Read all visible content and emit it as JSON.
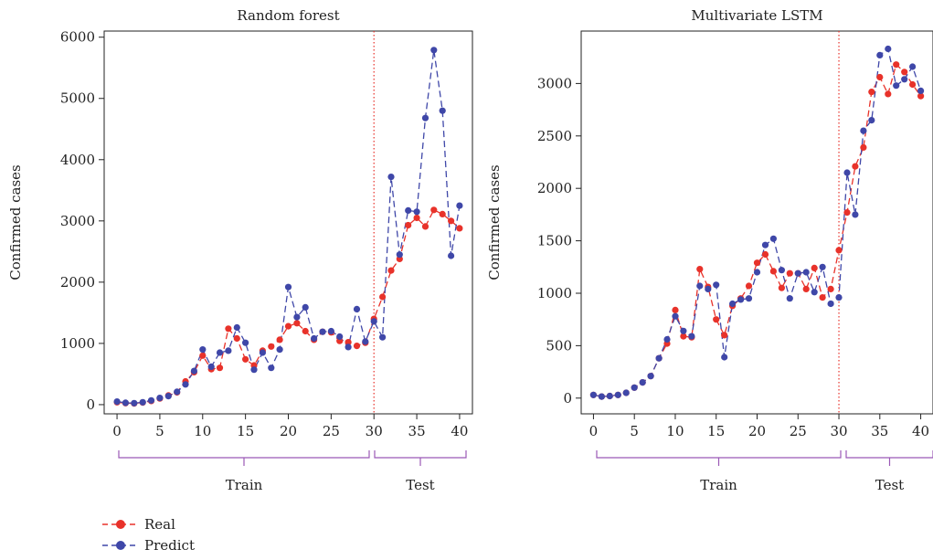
{
  "chart_data": [
    {
      "type": "line",
      "title": "Random forest",
      "xlabel": "",
      "ylabel": "Confirmed cases",
      "xlim": [
        -1.5,
        41.5
      ],
      "ylim": [
        -150,
        6100
      ],
      "xticks": [
        0,
        5,
        10,
        15,
        20,
        25,
        30,
        35,
        40
      ],
      "yticks": [
        0,
        1000,
        2000,
        3000,
        4000,
        5000,
        6000
      ],
      "divider_x": 30,
      "x": [
        0,
        1,
        2,
        3,
        4,
        5,
        6,
        7,
        8,
        9,
        10,
        11,
        12,
        13,
        14,
        15,
        16,
        17,
        18,
        19,
        20,
        21,
        22,
        23,
        24,
        25,
        26,
        27,
        28,
        29,
        30,
        31,
        32,
        33,
        34,
        35,
        36,
        37,
        38,
        39,
        40
      ],
      "series": [
        {
          "name": "Real",
          "color": "#e8322a",
          "values": [
            40,
            25,
            20,
            35,
            60,
            100,
            150,
            200,
            380,
            530,
            800,
            580,
            600,
            1240,
            1080,
            740,
            640,
            880,
            950,
            1060,
            1280,
            1330,
            1200,
            1060,
            1190,
            1180,
            1040,
            1020,
            960,
            1010,
            1400,
            1760,
            2190,
            2380,
            2930,
            3050,
            2910,
            3180,
            3110,
            3000,
            2880
          ]
        },
        {
          "name": "Predict",
          "color": "#3f47a8",
          "values": [
            50,
            30,
            25,
            40,
            70,
            110,
            140,
            210,
            330,
            550,
            900,
            620,
            850,
            880,
            1260,
            1010,
            570,
            850,
            600,
            900,
            1920,
            1430,
            1590,
            1080,
            1190,
            1200,
            1110,
            940,
            1560,
            1030,
            1360,
            1100,
            3720,
            2450,
            3170,
            3150,
            4680,
            5790,
            4800,
            2430,
            3250
          ]
        }
      ],
      "groups": [
        {
          "label": "Train",
          "from": 0,
          "to": 30
        },
        {
          "label": "Test",
          "from": 31,
          "to": 40
        }
      ]
    },
    {
      "type": "line",
      "title": "Multivariate LSTM",
      "xlabel": "",
      "ylabel": "Confirmed cases",
      "xlim": [
        -1.5,
        41.5
      ],
      "ylim": [
        -150,
        3500
      ],
      "xticks": [
        0,
        5,
        10,
        15,
        20,
        25,
        30,
        35,
        40
      ],
      "yticks": [
        0,
        500,
        1000,
        1500,
        2000,
        2500,
        3000
      ],
      "divider_x": 30,
      "x": [
        0,
        1,
        2,
        3,
        4,
        5,
        6,
        7,
        8,
        9,
        10,
        11,
        12,
        13,
        14,
        15,
        16,
        17,
        18,
        19,
        20,
        21,
        22,
        23,
        24,
        25,
        26,
        27,
        28,
        29,
        30,
        31,
        32,
        33,
        34,
        35,
        36,
        37,
        38,
        39,
        40
      ],
      "series": [
        {
          "name": "Real",
          "color": "#e8322a",
          "values": [
            30,
            15,
            20,
            30,
            50,
            100,
            150,
            210,
            380,
            520,
            840,
            590,
            580,
            1230,
            1060,
            750,
            600,
            880,
            950,
            1070,
            1290,
            1370,
            1210,
            1050,
            1190,
            1190,
            1040,
            1240,
            960,
            1040,
            1410,
            1770,
            2210,
            2390,
            2920,
            3060,
            2900,
            3180,
            3110,
            2990,
            2880
          ]
        },
        {
          "name": "Predict",
          "color": "#3f47a8",
          "values": [
            30,
            15,
            20,
            30,
            50,
            100,
            150,
            210,
            380,
            560,
            780,
            640,
            590,
            1070,
            1040,
            1080,
            390,
            900,
            940,
            950,
            1200,
            1460,
            1520,
            1220,
            950,
            1190,
            1200,
            1010,
            1250,
            900,
            960,
            2150,
            1750,
            2550,
            2650,
            3270,
            3330,
            2980,
            3040,
            3160,
            2930
          ]
        }
      ],
      "groups": [
        {
          "label": "Train",
          "from": 0,
          "to": 30
        },
        {
          "label": "Test",
          "from": 31,
          "to": 40
        }
      ]
    }
  ],
  "legend": [
    {
      "label": "Real",
      "color": "#e8322a"
    },
    {
      "label": "Predict",
      "color": "#3f47a8"
    }
  ],
  "colors": {
    "axis": "#222222",
    "divider": "#e8322a",
    "bracket": "#9b59b6"
  }
}
